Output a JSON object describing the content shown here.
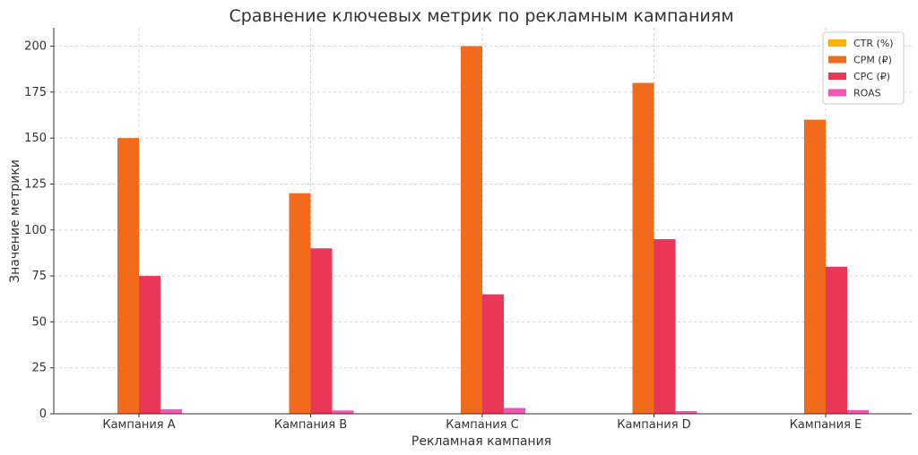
{
  "chart_data": {
    "type": "bar",
    "title": "Сравнение ключевых метрик по рекламным кампаниям",
    "xlabel": "Рекламная кампания",
    "ylabel": "Значение метрики",
    "categories": [
      "Кампания A",
      "Кампания B",
      "Кампания C",
      "Кампания D",
      "Кампания E"
    ],
    "series": [
      {
        "name": "CTR (%)",
        "color": "#ffb000",
        "values": [
          0.0,
          0.0,
          0.0,
          0.0,
          0.0
        ]
      },
      {
        "name": "CPM (₽)",
        "color": "#f26b1d",
        "values": [
          150,
          120,
          200,
          180,
          160
        ]
      },
      {
        "name": "CPC (₽)",
        "color": "#ea3757",
        "values": [
          75,
          90,
          65,
          95,
          80
        ]
      },
      {
        "name": "ROAS",
        "color": "#f057b7",
        "values": [
          2.5,
          1.8,
          3.2,
          1.5,
          2.0
        ]
      }
    ],
    "ylim": [
      0,
      210
    ],
    "yticks": [
      0,
      25,
      50,
      75,
      100,
      125,
      150,
      175,
      200
    ],
    "grid": true,
    "legend_position": "top-right"
  }
}
